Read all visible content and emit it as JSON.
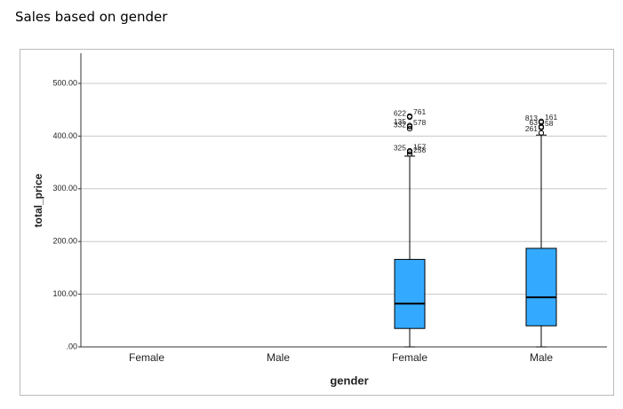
{
  "chart_data": {
    "type": "box",
    "title": "Sales based on gender",
    "x_label": "gender",
    "y_label": "total_price",
    "categories": [
      "Female",
      "Male",
      "Female",
      "Male"
    ],
    "color": "#33aaff",
    "ylim": [
      0,
      500
    ],
    "yticks": [
      {
        "value": 0,
        "label": ".00"
      },
      {
        "value": 100,
        "label": "100.00"
      },
      {
        "value": 200,
        "label": "200.00"
      },
      {
        "value": 300,
        "label": "300.00"
      },
      {
        "value": 400,
        "label": "400.00"
      },
      {
        "value": 500,
        "label": "500.00"
      }
    ],
    "grid": true,
    "boxes": [
      null,
      null,
      {
        "min": 0,
        "q1": 35,
        "median": 82,
        "q3": 166,
        "max": 362,
        "outliers": [
          {
            "value": 436,
            "label": "622"
          },
          {
            "value": 438,
            "label": "761"
          },
          {
            "value": 420,
            "label": "135"
          },
          {
            "value": 418,
            "label": "578"
          },
          {
            "value": 414,
            "label": "332"
          },
          {
            "value": 372,
            "label": "157"
          },
          {
            "value": 370,
            "label": "325"
          },
          {
            "value": 366,
            "label": "258"
          }
        ]
      },
      {
        "min": 0,
        "q1": 40,
        "median": 94,
        "q3": 187,
        "max": 402,
        "outliers": [
          {
            "value": 426,
            "label": "813"
          },
          {
            "value": 428,
            "label": "161"
          },
          {
            "value": 418,
            "label": "63"
          },
          {
            "value": 416,
            "label": "58"
          },
          {
            "value": 406,
            "label": "261"
          }
        ]
      }
    ]
  }
}
